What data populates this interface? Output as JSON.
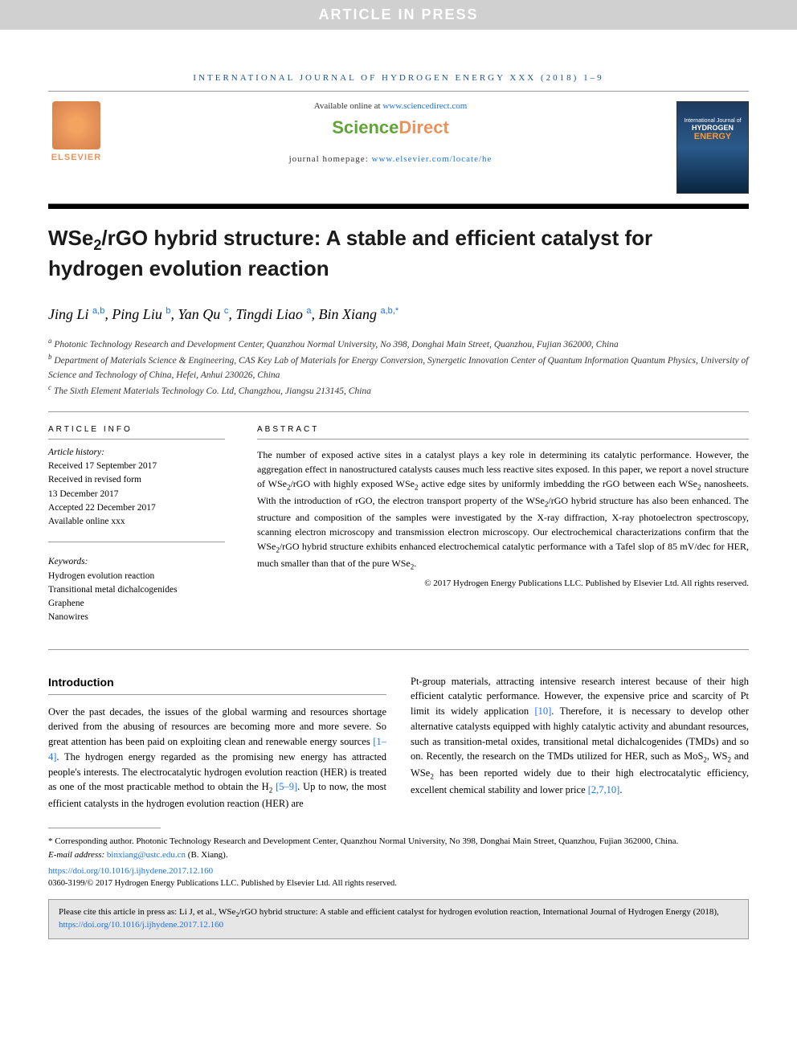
{
  "banner": "ARTICLE IN PRESS",
  "journal_header": "INTERNATIONAL JOURNAL OF HYDROGEN ENERGY XXX (2018) 1–9",
  "header": {
    "elsevier": "ELSEVIER",
    "available": "Available online at ",
    "available_link": "www.sciencedirect.com",
    "sd_science": "Science",
    "sd_direct": "Direct",
    "homepage_label": "journal homepage: ",
    "homepage_link": "www.elsevier.com/locate/he",
    "cover_journal": "International Journal of",
    "cover_hydrogen": "HYDROGEN",
    "cover_energy": "ENERGY"
  },
  "title_html": "WSe<sub>2</sub>/rGO hybrid structure: A stable and efficient catalyst for hydrogen evolution reaction",
  "authors_html": "Jing Li <span class='sup'>a,b</span>, Ping Liu <span class='sup'>b</span>, Yan Qu <span class='sup'>c</span>, Tingdi Liao <span class='sup'>a</span>, Bin Xiang <span class='sup'>a,b,*</span>",
  "affiliations": {
    "a": "Photonic Technology Research and Development Center, Quanzhou Normal University, No 398, Donghai Main Street, Quanzhou, Fujian 362000, China",
    "b": "Department of Materials Science & Engineering, CAS Key Lab of Materials for Energy Conversion, Synergetic Innovation Center of Quantum Information Quantum Physics, University of Science and Technology of China, Hefei, Anhui 230026, China",
    "c": "The Sixth Element Materials Technology Co. Ltd, Changzhou, Jiangsu 213145, China"
  },
  "article_info": {
    "heading": "ARTICLE INFO",
    "history_label": "Article history:",
    "received": "Received 17 September 2017",
    "revised_label": "Received in revised form",
    "revised_date": "13 December 2017",
    "accepted": "Accepted 22 December 2017",
    "online": "Available online xxx",
    "keywords_label": "Keywords:",
    "keywords": [
      "Hydrogen evolution reaction",
      "Transitional metal dichalcogenides",
      "Graphene",
      "Nanowires"
    ]
  },
  "abstract": {
    "heading": "ABSTRACT",
    "text_html": "The number of exposed active sites in a catalyst plays a key role in determining its catalytic performance. However, the aggregation effect in nanostructured catalysts causes much less reactive sites exposed. In this paper, we report a novel structure of WSe<sub>2</sub>/rGO with highly exposed WSe<sub>2</sub> active edge sites by uniformly imbedding the rGO between each WSe<sub>2</sub> nanosheets. With the introduction of rGO, the electron transport property of the WSe<sub>2</sub>/rGO hybrid structure has also been enhanced. The structure and composition of the samples were investigated by the X-ray diffraction, X-ray photoelectron spectroscopy, scanning electron microscopy and transmission electron microscopy. Our electrochemical characterizations confirm that the WSe<sub>2</sub>/rGO hybrid structure exhibits enhanced electrochemical catalytic performance with a Tafel slop of 85 mV/dec for HER, much smaller than that of the pure WSe<sub>2</sub>.",
    "copyright": "© 2017 Hydrogen Energy Publications LLC. Published by Elsevier Ltd. All rights reserved."
  },
  "intro": {
    "heading": "Introduction",
    "col1_html": "Over the past decades, the issues of the global warming and resources shortage derived from the abusing of resources are becoming more and more severe. So great attention has been paid on exploiting clean and renewable energy sources <a href='#'>[1–4]</a>. The hydrogen energy regarded as the promising new energy has attracted people's interests. The electrocatalytic hydrogen evolution reaction (HER) is treated as one of the most practicable method to obtain the H<sub>2</sub> <a href='#'>[5–9]</a>. Up to now, the most efficient catalysts in the hydrogen evolution reaction (HER) are",
    "col2_html": "Pt-group materials, attracting intensive research interest because of their high efficient catalytic performance. However, the expensive price and scarcity of Pt limit its widely application <a href='#'>[10]</a>. Therefore, it is necessary to develop other alternative catalysts equipped with highly catalytic activity and abundant resources, such as transition-metal oxides, transitional metal dichalcogenides (TMDs) and so on. Recently, the research on the TMDs utilized for HER, such as MoS<sub>2</sub>, WS<sub>2</sub> and WSe<sub>2</sub> has been reported widely due to their high electrocatalytic efficiency, excellent chemical stability and lower price <a href='#'>[2,7,10]</a>."
  },
  "footnotes": {
    "corresponding": "* Corresponding author. Photonic Technology Research and Development Center, Quanzhou Normal University, No 398, Donghai Main Street, Quanzhou, Fujian 362000, China.",
    "email_label": "E-mail address: ",
    "email": "binxiang@ustc.edu.cn",
    "email_suffix": " (B. Xiang).",
    "doi": "https://doi.org/10.1016/j.ijhydene.2017.12.160",
    "issn_copyright": "0360-3199/© 2017 Hydrogen Energy Publications LLC. Published by Elsevier Ltd. All rights reserved."
  },
  "cite_box_html": "Please cite this article in press as: Li J, et al., WSe<sub>2</sub>/rGO hybrid structure: A stable and efficient catalyst for hydrogen evolution reaction, International Journal of Hydrogen Energy (2018), <a href='#'>https://doi.org/10.1016/j.ijhydene.2017.12.160</a>"
}
